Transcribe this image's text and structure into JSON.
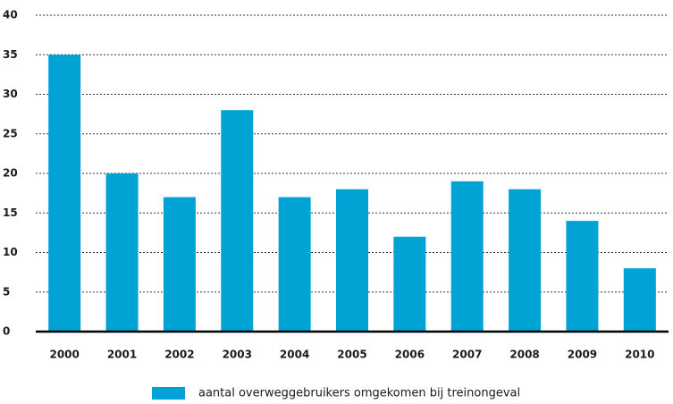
{
  "chart_data": {
    "type": "bar",
    "categories": [
      "2000",
      "2001",
      "2002",
      "2003",
      "2004",
      "2005",
      "2006",
      "2007",
      "2008",
      "2009",
      "2010"
    ],
    "series": [
      {
        "name": "aantal overweggebruikers omgekomen bij treinongeval",
        "color": "#00a3d4",
        "values": [
          35,
          20,
          17,
          28,
          17,
          18,
          12,
          19,
          18,
          14,
          8
        ]
      }
    ],
    "ylim": [
      0,
      40
    ],
    "yticks": [
      0,
      5,
      10,
      15,
      20,
      25,
      30,
      35,
      40
    ],
    "grid": true,
    "legend": "bottom"
  }
}
